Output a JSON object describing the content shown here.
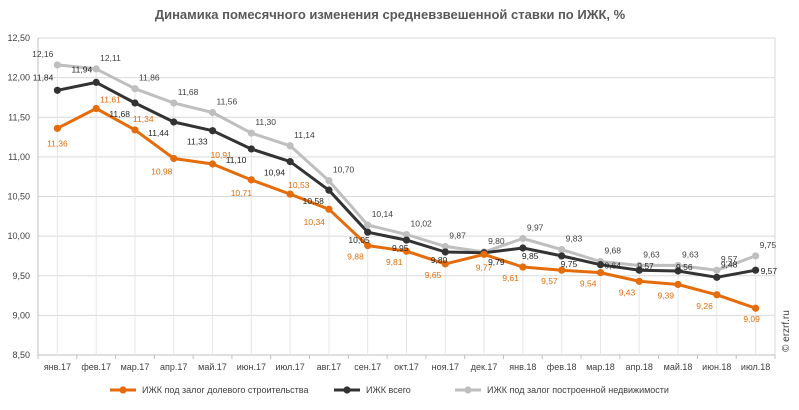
{
  "chart_data": {
    "type": "line",
    "title": "Динамика помесячного изменения средневзвешенной ставки по ИЖК, %",
    "categories": [
      "янв.17",
      "фев.17",
      "мар.17",
      "апр.17",
      "май.17",
      "июн.17",
      "июл.17",
      "авг.17",
      "сен.17",
      "окт.17",
      "ноя.17",
      "дек.17",
      "янв.18",
      "фев.18",
      "мар.18",
      "апр.18",
      "май.18",
      "июн.18",
      "июл.18"
    ],
    "ylim": [
      8.5,
      12.5
    ],
    "yticks": [
      "8,50",
      "9,00",
      "9,50",
      "10,00",
      "10,50",
      "11,00",
      "11,50",
      "12,00",
      "12,50"
    ],
    "grid": true,
    "legend_position": "bottom",
    "series": [
      {
        "name": "ИЖК под залог долевого строительства",
        "color": "#E46C0A",
        "values": [
          11.36,
          11.61,
          11.34,
          10.98,
          10.91,
          10.71,
          10.53,
          10.34,
          9.88,
          9.81,
          9.65,
          9.77,
          9.61,
          9.57,
          9.54,
          9.43,
          9.39,
          9.26,
          9.09
        ],
        "labels": [
          "11,36",
          "11,61",
          "11,34",
          "10,98",
          "10,91",
          "10,71",
          "10,53",
          "10,34",
          "9,88",
          "9,81",
          "9,65",
          "9,77",
          "9,61",
          "9,57",
          "9,54",
          "9,43",
          "9,39",
          "9,26",
          "9,09"
        ]
      },
      {
        "name": "ИЖК всего",
        "color": "#333333",
        "values": [
          11.84,
          11.94,
          11.68,
          11.44,
          11.33,
          11.1,
          10.94,
          10.58,
          10.05,
          9.95,
          9.8,
          9.79,
          9.85,
          9.75,
          9.64,
          9.57,
          9.56,
          9.48,
          9.57
        ],
        "labels": [
          "11,84",
          "11,94",
          "11,68",
          "11,44",
          "11,33",
          "11,10",
          "10,94",
          "10,58",
          "10,05",
          "9,95",
          "9,80",
          "9,79",
          "9,85",
          "9,75",
          "9,64",
          "9,57",
          "9,56",
          "9,48",
          "9,57"
        ]
      },
      {
        "name": "ИЖК под залог построенной недвижимости",
        "color": "#BFBFBF",
        "values": [
          12.16,
          12.11,
          11.86,
          11.68,
          11.56,
          11.3,
          11.14,
          10.7,
          10.14,
          10.02,
          9.87,
          9.8,
          9.97,
          9.83,
          9.68,
          9.63,
          9.63,
          9.57,
          9.75
        ],
        "labels": [
          "12,16",
          "12,11",
          "11,86",
          "11,68",
          "11,56",
          "11,30",
          "11,14",
          "10,70",
          "10,14",
          "10,02",
          "9,87",
          "9,80",
          "9,97",
          "9,83",
          "9,68",
          "9,63",
          "9,63",
          "9,57",
          "9,75"
        ]
      }
    ]
  },
  "watermark": "© erzrf.ru"
}
